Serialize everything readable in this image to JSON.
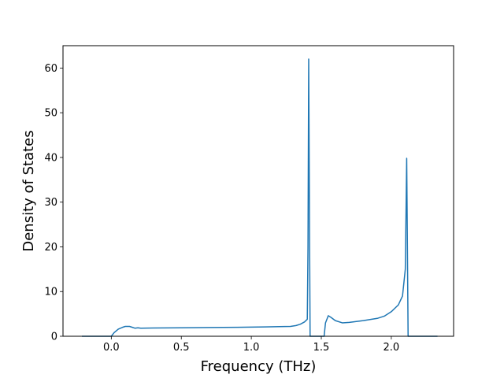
{
  "chart_data": {
    "type": "line",
    "title": "",
    "xlabel": "Frequency (THz)",
    "ylabel": "Density of States",
    "xlim": [
      -0.345,
      2.445
    ],
    "ylim": [
      0,
      65
    ],
    "grid": false,
    "xticks": [
      0.0,
      0.5,
      1.0,
      1.5,
      2.0
    ],
    "xtick_labels": [
      "0.0",
      "0.5",
      "1.0",
      "1.5",
      "2.0"
    ],
    "yticks": [
      0,
      10,
      20,
      30,
      40,
      50,
      60
    ],
    "ytick_labels": [
      "0",
      "10",
      "20",
      "30",
      "40",
      "50",
      "60"
    ],
    "colors": {
      "line": "#1f77b4",
      "axes": "#000000",
      "background": "#ffffff"
    },
    "series": [
      {
        "x": [
          -0.21,
          0.0,
          0.02,
          0.05,
          0.08,
          0.1,
          0.13,
          0.15,
          0.17,
          0.19,
          0.21,
          0.3,
          0.5,
          0.7,
          0.9,
          1.1,
          1.2,
          1.28,
          1.32,
          1.35,
          1.38,
          1.4,
          1.405,
          1.41,
          1.415,
          1.42,
          1.52,
          1.53,
          1.55,
          1.57,
          1.6,
          1.65,
          1.7,
          1.8,
          1.9,
          1.95,
          2.0,
          2.05,
          2.08,
          2.1,
          2.11,
          2.115,
          2.12,
          2.33
        ],
        "y": [
          0,
          0,
          0.8,
          1.6,
          2.0,
          2.2,
          2.2,
          2.0,
          1.8,
          1.9,
          1.8,
          1.85,
          1.9,
          1.95,
          2.0,
          2.1,
          2.15,
          2.2,
          2.4,
          2.7,
          3.2,
          3.8,
          20.0,
          62.0,
          30.0,
          0,
          0,
          3.0,
          4.6,
          4.2,
          3.5,
          3.0,
          3.1,
          3.5,
          4.0,
          4.5,
          5.5,
          7.0,
          9.0,
          15.0,
          39.8,
          20.0,
          0,
          0
        ]
      }
    ]
  }
}
